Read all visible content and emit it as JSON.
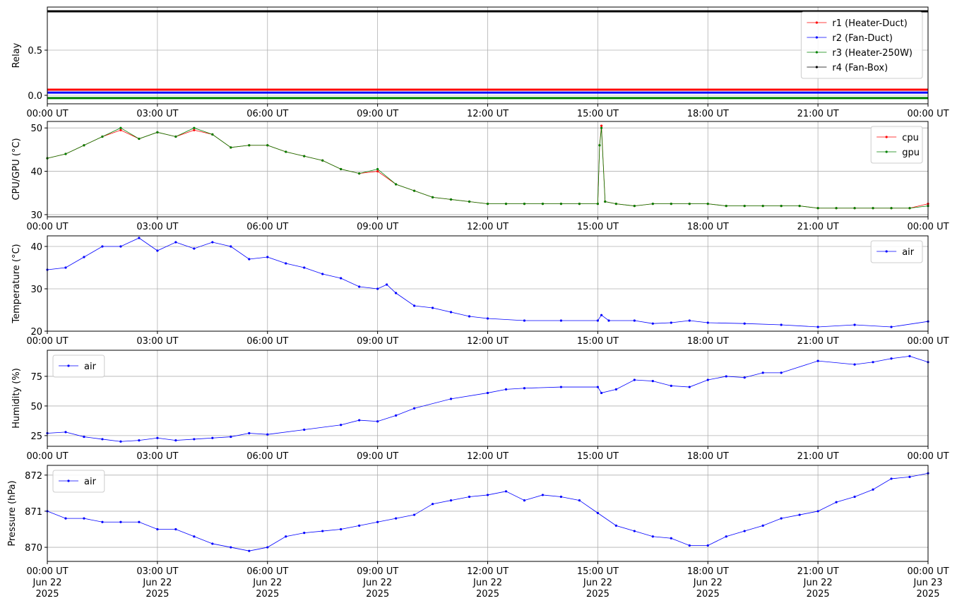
{
  "chart_data": [
    {
      "type": "line",
      "ylabel": "Relay",
      "legend": "upper right",
      "grid": true,
      "markers": false,
      "xlim": [
        0,
        24
      ],
      "ylim": [
        -0.094,
        0.977
      ],
      "xticks": [
        {
          "value": 0,
          "label": "00:00 UT"
        },
        {
          "value": 3,
          "label": "03:00 UT"
        },
        {
          "value": 6,
          "label": "06:00 UT"
        },
        {
          "value": 9,
          "label": "09:00 UT"
        },
        {
          "value": 12,
          "label": "12:00 UT"
        },
        {
          "value": 15,
          "label": "15:00 UT"
        },
        {
          "value": 18,
          "label": "18:00 UT"
        },
        {
          "value": 21,
          "label": "21:00 UT"
        },
        {
          "value": 24,
          "label": "00:00 UT"
        }
      ],
      "yticks": [
        {
          "value": 0,
          "label": "0.0"
        },
        {
          "value": 0.5,
          "label": "0.5"
        }
      ],
      "x": [
        0,
        24
      ],
      "series": [
        {
          "name": "r1 (Heater-Duct)",
          "color": "#ff0000",
          "values": [
            0.0625,
            0.0625
          ]
        },
        {
          "name": "r2 (Fan-Duct)",
          "color": "#0000ff",
          "values": [
            0.03,
            0.03
          ]
        },
        {
          "name": "r3 (Heater-250W)",
          "color": "#008000",
          "values": [
            -0.03,
            -0.03
          ]
        },
        {
          "name": "r4 (Fan-Box)",
          "color": "#000000",
          "values": [
            0.93,
            0.93
          ]
        }
      ]
    },
    {
      "type": "line",
      "ylabel": "CPU/GPU (°C)",
      "legend": "upper right",
      "grid": true,
      "markers": true,
      "xlim": [
        0,
        24
      ],
      "ylim": [
        29.5,
        51.5
      ],
      "xticks": [
        {
          "value": 0,
          "label": "00:00 UT"
        },
        {
          "value": 3,
          "label": "03:00 UT"
        },
        {
          "value": 6,
          "label": "06:00 UT"
        },
        {
          "value": 9,
          "label": "09:00 UT"
        },
        {
          "value": 12,
          "label": "12:00 UT"
        },
        {
          "value": 15,
          "label": "15:00 UT"
        },
        {
          "value": 18,
          "label": "18:00 UT"
        },
        {
          "value": 21,
          "label": "21:00 UT"
        },
        {
          "value": 24,
          "label": "00:00 UT"
        }
      ],
      "yticks": [
        30,
        40,
        50
      ],
      "x": [
        0,
        0.5,
        1,
        1.5,
        2,
        2.5,
        3,
        3.5,
        4,
        4.5,
        5,
        5.5,
        6,
        6.5,
        7,
        7.5,
        8,
        8.5,
        9,
        9.5,
        10,
        10.5,
        11,
        11.5,
        12,
        12.5,
        13,
        13.5,
        14,
        14.5,
        15,
        15.05,
        15.1,
        15.2,
        15.5,
        16,
        16.5,
        17,
        17.5,
        18,
        18.5,
        19,
        19.5,
        20,
        20.5,
        21,
        21.5,
        22,
        22.5,
        23,
        23.5,
        24
      ],
      "series": [
        {
          "name": "cpu",
          "color": "#ff0000",
          "values": [
            43,
            44,
            46,
            48,
            49.5,
            47.5,
            49,
            48,
            49.5,
            48.5,
            45.5,
            46,
            46,
            44.5,
            43.5,
            42.5,
            40.5,
            39.5,
            40,
            37,
            35.5,
            34,
            33.5,
            33,
            32.5,
            32.5,
            32.5,
            32.5,
            32.5,
            32.5,
            32.5,
            46,
            50.5,
            33,
            32.5,
            32,
            32.5,
            32.5,
            32.5,
            32.5,
            32,
            32,
            32,
            32,
            32,
            31.5,
            31.5,
            31.5,
            31.5,
            31.5,
            31.5,
            32.5
          ]
        },
        {
          "name": "gpu",
          "color": "#008000",
          "values": [
            43,
            44,
            46,
            48,
            50,
            47.5,
            49,
            48,
            50,
            48.5,
            45.5,
            46,
            46,
            44.5,
            43.5,
            42.5,
            40.5,
            39.5,
            40.5,
            37,
            35.5,
            34,
            33.5,
            33,
            32.5,
            32.5,
            32.5,
            32.5,
            32.5,
            32.5,
            32.5,
            46,
            50,
            33,
            32.5,
            32,
            32.5,
            32.5,
            32.5,
            32.5,
            32,
            32,
            32,
            32,
            32,
            31.5,
            31.5,
            31.5,
            31.5,
            31.5,
            31.5,
            32
          ]
        }
      ]
    },
    {
      "type": "line",
      "ylabel": "Temperature (°C)",
      "legend": "upper right",
      "grid": true,
      "markers": true,
      "xlim": [
        0,
        24
      ],
      "ylim": [
        20,
        42.5
      ],
      "xticks": [
        {
          "value": 0,
          "label": "00:00 UT"
        },
        {
          "value": 3,
          "label": "03:00 UT"
        },
        {
          "value": 6,
          "label": "06:00 UT"
        },
        {
          "value": 9,
          "label": "09:00 UT"
        },
        {
          "value": 12,
          "label": "12:00 UT"
        },
        {
          "value": 15,
          "label": "15:00 UT"
        },
        {
          "value": 18,
          "label": "18:00 UT"
        },
        {
          "value": 21,
          "label": "21:00 UT"
        },
        {
          "value": 24,
          "label": "00:00 UT"
        }
      ],
      "yticks": [
        20,
        30,
        40
      ],
      "x": [
        0,
        0.5,
        1,
        1.5,
        2,
        2.5,
        3,
        3.5,
        4,
        4.5,
        5,
        5.5,
        6,
        6.5,
        7,
        7.5,
        8,
        8.5,
        9,
        9.25,
        9.5,
        10,
        10.5,
        11,
        11.5,
        12,
        13,
        14,
        15,
        15.1,
        15.3,
        16,
        16.5,
        17,
        17.5,
        18,
        19,
        20,
        21,
        22,
        23,
        24
      ],
      "series": [
        {
          "name": "air",
          "color": "#0000ff",
          "values": [
            34.5,
            35,
            37.5,
            40,
            40,
            42,
            39,
            41,
            39.5,
            41,
            40,
            37,
            37.5,
            36,
            35,
            33.5,
            32.5,
            30.5,
            30,
            31,
            29,
            26,
            25.5,
            24.5,
            23.5,
            23,
            22.5,
            22.5,
            22.5,
            23.8,
            22.5,
            22.5,
            21.8,
            22,
            22.5,
            22,
            21.8,
            21.5,
            21,
            21.5,
            21,
            22.3
          ]
        }
      ]
    },
    {
      "type": "line",
      "ylabel": "Humidity (%)",
      "legend": "upper left",
      "grid": true,
      "markers": true,
      "xlim": [
        0,
        24
      ],
      "ylim": [
        16,
        97
      ],
      "xticks": [
        {
          "value": 0,
          "label": "00:00 UT"
        },
        {
          "value": 3,
          "label": "03:00 UT"
        },
        {
          "value": 6,
          "label": "06:00 UT"
        },
        {
          "value": 9,
          "label": "09:00 UT"
        },
        {
          "value": 12,
          "label": "12:00 UT"
        },
        {
          "value": 15,
          "label": "15:00 UT"
        },
        {
          "value": 18,
          "label": "18:00 UT"
        },
        {
          "value": 21,
          "label": "21:00 UT"
        },
        {
          "value": 24,
          "label": "00:00 UT"
        }
      ],
      "yticks": [
        25,
        50,
        75
      ],
      "x": [
        0,
        0.5,
        1,
        1.5,
        2,
        2.5,
        3,
        3.5,
        4,
        4.5,
        5,
        5.5,
        6,
        7,
        8,
        8.5,
        9,
        9.5,
        10,
        11,
        12,
        12.5,
        13,
        14,
        15,
        15.1,
        15.5,
        16,
        16.5,
        17,
        17.5,
        18,
        18.5,
        19,
        19.5,
        20,
        21,
        22,
        22.5,
        23,
        23.5,
        24
      ],
      "series": [
        {
          "name": "air",
          "color": "#0000ff",
          "values": [
            27,
            28,
            24,
            22,
            20,
            21,
            23,
            21,
            22,
            23,
            24,
            27,
            26,
            30,
            34,
            38,
            37,
            42,
            48,
            56,
            61,
            64,
            65,
            66,
            66,
            61,
            64,
            72,
            71,
            67,
            66,
            72,
            75,
            74,
            78,
            78,
            88,
            85,
            87,
            90,
            92,
            87
          ]
        }
      ]
    },
    {
      "type": "line",
      "ylabel": "Pressure (hPa)",
      "legend": "upper left",
      "grid": true,
      "markers": true,
      "xlim": [
        0,
        24
      ],
      "ylim": [
        869.61,
        872.27
      ],
      "xticks": [
        {
          "value": 0,
          "label": "00:00 UT\nJun 22\n2025"
        },
        {
          "value": 3,
          "label": "03:00 UT\nJun 22\n2025"
        },
        {
          "value": 6,
          "label": "06:00 UT\nJun 22\n2025"
        },
        {
          "value": 9,
          "label": "09:00 UT\nJun 22\n2025"
        },
        {
          "value": 12,
          "label": "12:00 UT\nJun 22\n2025"
        },
        {
          "value": 15,
          "label": "15:00 UT\nJun 22\n2025"
        },
        {
          "value": 18,
          "label": "18:00 UT\nJun 22\n2025"
        },
        {
          "value": 21,
          "label": "21:00 UT\nJun 22\n2025"
        },
        {
          "value": 24,
          "label": "00:00 UT\nJun 23\n2025"
        }
      ],
      "yticks": [
        870,
        871,
        872
      ],
      "x": [
        0,
        0.5,
        1,
        1.5,
        2,
        2.5,
        3,
        3.5,
        4,
        4.5,
        5,
        5.5,
        6,
        6.5,
        7,
        7.5,
        8,
        8.5,
        9,
        9.5,
        10,
        10.5,
        11,
        11.5,
        12,
        12.5,
        13,
        13.5,
        14,
        14.5,
        15,
        15.5,
        16,
        16.5,
        17,
        17.5,
        18,
        18.5,
        19,
        19.5,
        20,
        20.5,
        21,
        21.5,
        22,
        22.5,
        23,
        23.5,
        24
      ],
      "series": [
        {
          "name": "air",
          "color": "#0000ff",
          "values": [
            871,
            870.8,
            870.8,
            870.7,
            870.7,
            870.7,
            870.5,
            870.5,
            870.3,
            870.1,
            870,
            869.9,
            870,
            870.3,
            870.4,
            870.45,
            870.5,
            870.6,
            870.7,
            870.8,
            870.9,
            871.2,
            871.3,
            871.4,
            871.45,
            871.55,
            871.3,
            871.45,
            871.4,
            871.3,
            870.95,
            870.6,
            870.45,
            870.3,
            870.25,
            870.05,
            870.05,
            870.3,
            870.45,
            870.6,
            870.8,
            870.9,
            871,
            871.25,
            871.4,
            871.6,
            871.9,
            871.95,
            872.05
          ]
        }
      ]
    }
  ]
}
